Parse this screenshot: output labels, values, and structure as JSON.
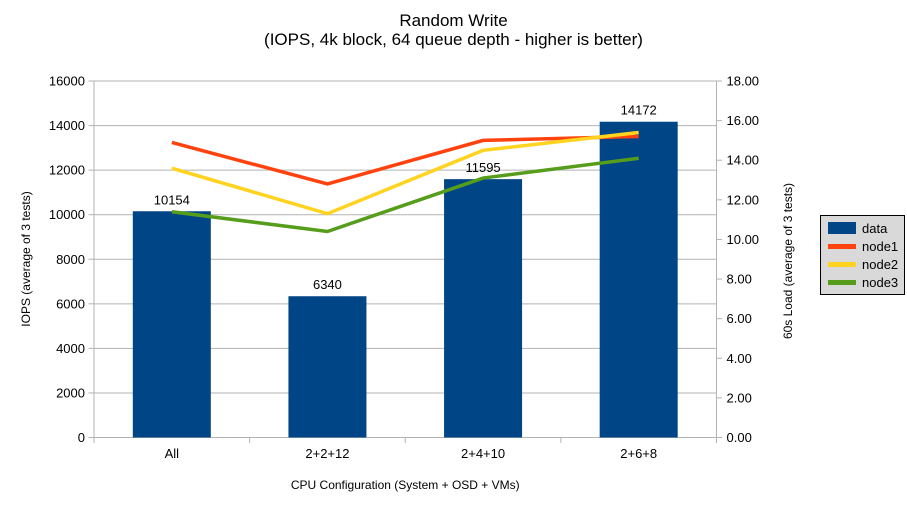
{
  "chart_data": {
    "type": "bar+line",
    "title": "Random Write",
    "subtitle": "(IOPS, 4k block, 64 queue depth - higher is better)",
    "xlabel": "CPU Configuration (System + OSD + VMs)",
    "ylabel_left": "IOPS (average of 3 tests)",
    "ylabel_right": "60s Load (average of 3 tests)",
    "categories": [
      "All",
      "2+2+12",
      "2+4+10",
      "2+6+8"
    ],
    "bar_series": {
      "name": "data",
      "color": "#004586",
      "axis": "left",
      "values": [
        10154,
        6340,
        11595,
        14172
      ]
    },
    "line_series": [
      {
        "name": "node1",
        "color": "#ff420e",
        "axis": "right",
        "values": [
          14.9,
          12.8,
          15.0,
          15.2
        ]
      },
      {
        "name": "node2",
        "color": "#ffd320",
        "axis": "right",
        "values": [
          13.6,
          11.3,
          14.5,
          15.4
        ]
      },
      {
        "name": "node3",
        "color": "#579d1c",
        "axis": "right",
        "values": [
          11.4,
          10.4,
          13.1,
          14.1
        ]
      }
    ],
    "left_axis": {
      "min": 0,
      "max": 16000,
      "step": 2000,
      "tick_labels": [
        "16000",
        "14000",
        "12000",
        "10000",
        "8000",
        "6000",
        "4000",
        "2000",
        "0"
      ]
    },
    "right_axis": {
      "min": 0,
      "max": 18,
      "step": 2,
      "tick_labels": [
        "18.00",
        "16.00",
        "14.00",
        "12.00",
        "10.00",
        "8.00",
        "6.00",
        "4.00",
        "2.00",
        "0.00"
      ]
    },
    "legend": {
      "position": "right",
      "background": "#d9d9d9",
      "border_color": "#000000",
      "entries": [
        "data",
        "node1",
        "node2",
        "node3"
      ]
    },
    "grid": {
      "horizontal": true,
      "color": "#b3b3b3"
    },
    "background": "#ffffff"
  }
}
